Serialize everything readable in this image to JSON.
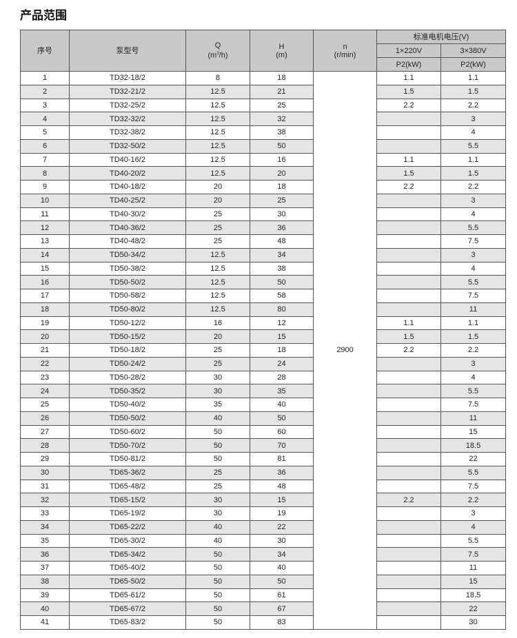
{
  "title": "产品范围",
  "header": {
    "seq": "序号",
    "model": "泵型号",
    "q": "Q",
    "q_unit_pre": "(m",
    "q_unit_sup": "3",
    "q_unit_post": "/h)",
    "h": "H",
    "h_unit": "(m)",
    "n": "n",
    "n_unit": "(r/min)",
    "voltage": "标准电机电压(V)",
    "v1": "1×220V",
    "v3": "3×380V",
    "p1": "P2(kW)",
    "p3": "P2(kW)"
  },
  "speed": "2900",
  "rows": [
    [
      "1",
      "TD32-18/2",
      "8",
      "18",
      "1.1",
      "1.1"
    ],
    [
      "2",
      "TD32-21/2",
      "12.5",
      "21",
      "1.5",
      "1.5"
    ],
    [
      "3",
      "TD32-25/2",
      "12.5",
      "25",
      "2.2",
      "2.2"
    ],
    [
      "4",
      "TD32-32/2",
      "12.5",
      "32",
      "",
      "3"
    ],
    [
      "5",
      "TD32-38/2",
      "12.5",
      "38",
      "",
      "4"
    ],
    [
      "6",
      "TD32-50/2",
      "12.5",
      "50",
      "",
      "5.5"
    ],
    [
      "7",
      "TD40-16/2",
      "12.5",
      "16",
      "1.1",
      "1.1"
    ],
    [
      "8",
      "TD40-20/2",
      "12.5",
      "20",
      "1.5",
      "1.5"
    ],
    [
      "9",
      "TD40-18/2",
      "20",
      "18",
      "2.2",
      "2.2"
    ],
    [
      "10",
      "TD40-25/2",
      "20",
      "25",
      "",
      "3"
    ],
    [
      "11",
      "TD40-30/2",
      "25",
      "30",
      "",
      "4"
    ],
    [
      "12",
      "TD40-36/2",
      "25",
      "36",
      "",
      "5.5"
    ],
    [
      "13",
      "TD40-48/2",
      "25",
      "48",
      "",
      "7.5"
    ],
    [
      "14",
      "TD50-34/2",
      "12.5",
      "34",
      "",
      "3"
    ],
    [
      "15",
      "TD50-38/2",
      "12.5",
      "38",
      "",
      "4"
    ],
    [
      "16",
      "TD50-50/2",
      "12.5",
      "50",
      "",
      "5.5"
    ],
    [
      "17",
      "TD50-58/2",
      "12.5",
      "58",
      "",
      "7.5"
    ],
    [
      "18",
      "TD50-80/2",
      "12.5",
      "80",
      "",
      "11"
    ],
    [
      "19",
      "TD50-12/2",
      "16",
      "12",
      "1.1",
      "1.1"
    ],
    [
      "20",
      "TD50-15/2",
      "20",
      "15",
      "1.5",
      "1.5"
    ],
    [
      "21",
      "TD50-18/2",
      "25",
      "18",
      "2.2",
      "2.2"
    ],
    [
      "22",
      "TD50-24/2",
      "25",
      "24",
      "",
      "3"
    ],
    [
      "23",
      "TD50-28/2",
      "30",
      "28",
      "",
      "4"
    ],
    [
      "24",
      "TD50-35/2",
      "30",
      "35",
      "",
      "5.5"
    ],
    [
      "25",
      "TD50-40/2",
      "35",
      "40",
      "",
      "7.5"
    ],
    [
      "26",
      "TD50-50/2",
      "40",
      "50",
      "",
      "11"
    ],
    [
      "27",
      "TD50-60/2",
      "50",
      "60",
      "",
      "15"
    ],
    [
      "28",
      "TD50-70/2",
      "50",
      "70",
      "",
      "18.5"
    ],
    [
      "29",
      "TD50-81/2",
      "50",
      "81",
      "",
      "22"
    ],
    [
      "30",
      "TD65-36/2",
      "25",
      "36",
      "",
      "5.5"
    ],
    [
      "31",
      "TD65-48/2",
      "25",
      "48",
      "",
      "7.5"
    ],
    [
      "32",
      "TD65-15/2",
      "30",
      "15",
      "2.2",
      "2.2"
    ],
    [
      "33",
      "TD65-19/2",
      "30",
      "19",
      "",
      "3"
    ],
    [
      "34",
      "TD65-22/2",
      "40",
      "22",
      "",
      "4"
    ],
    [
      "35",
      "TD65-30/2",
      "40",
      "30",
      "",
      "5.5"
    ],
    [
      "36",
      "TD65-34/2",
      "50",
      "34",
      "",
      "7.5"
    ],
    [
      "37",
      "TD65-40/2",
      "50",
      "40",
      "",
      "11"
    ],
    [
      "38",
      "TD65-50/2",
      "50",
      "50",
      "",
      "15"
    ],
    [
      "39",
      "TD65-61/2",
      "50",
      "61",
      "",
      "18.5"
    ],
    [
      "40",
      "TD65-67/2",
      "50",
      "67",
      "",
      "22"
    ],
    [
      "41",
      "TD65-83/2",
      "50",
      "83",
      "",
      "30"
    ]
  ]
}
